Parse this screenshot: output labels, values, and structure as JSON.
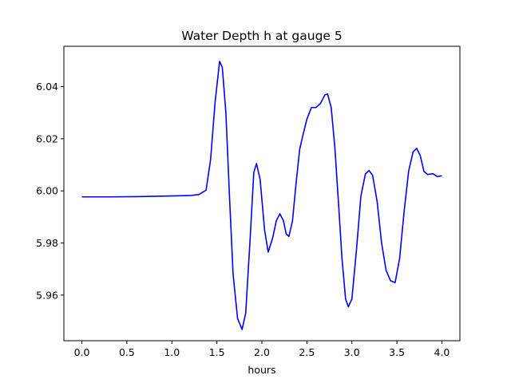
{
  "chart_data": {
    "type": "line",
    "title": "Water Depth h at gauge 5",
    "xlabel": "hours",
    "ylabel": "",
    "xlim": [
      -0.2,
      4.2
    ],
    "ylim": [
      5.9425,
      6.0555
    ],
    "xticks": [
      "0.0",
      "0.5",
      "1.0",
      "1.5",
      "2.0",
      "2.5",
      "3.0",
      "3.5",
      "4.0"
    ],
    "yticks": [
      "5.96",
      "5.98",
      "6.00",
      "6.02",
      "6.04"
    ],
    "grid": false,
    "series": [
      {
        "color": "#0000ff",
        "points": [
          [
            0.0,
            5.9977
          ],
          [
            0.3,
            5.9977
          ],
          [
            0.6,
            5.9978
          ],
          [
            0.9,
            5.998
          ],
          [
            1.2,
            5.9982
          ],
          [
            1.3,
            5.9986
          ],
          [
            1.38,
            6.0003
          ],
          [
            1.43,
            6.012
          ],
          [
            1.48,
            6.034
          ],
          [
            1.53,
            6.0497
          ],
          [
            1.56,
            6.0475
          ],
          [
            1.6,
            6.03
          ],
          [
            1.64,
            5.998
          ],
          [
            1.68,
            5.968
          ],
          [
            1.73,
            5.951
          ],
          [
            1.78,
            5.9468
          ],
          [
            1.82,
            5.953
          ],
          [
            1.87,
            5.982
          ],
          [
            1.91,
            6.007
          ],
          [
            1.94,
            6.0105
          ],
          [
            1.98,
            6.0045
          ],
          [
            2.03,
            5.985
          ],
          [
            2.07,
            5.9765
          ],
          [
            2.12,
            5.982
          ],
          [
            2.16,
            5.9885
          ],
          [
            2.2,
            5.9912
          ],
          [
            2.24,
            5.9885
          ],
          [
            2.27,
            5.9835
          ],
          [
            2.3,
            5.9825
          ],
          [
            2.34,
            5.9885
          ],
          [
            2.38,
            6.003
          ],
          [
            2.42,
            6.016
          ],
          [
            2.46,
            6.022
          ],
          [
            2.5,
            6.0275
          ],
          [
            2.55,
            6.032
          ],
          [
            2.6,
            6.032
          ],
          [
            2.65,
            6.0335
          ],
          [
            2.7,
            6.0368
          ],
          [
            2.73,
            6.0372
          ],
          [
            2.77,
            6.032
          ],
          [
            2.81,
            6.017
          ],
          [
            2.85,
            5.996
          ],
          [
            2.89,
            5.974
          ],
          [
            2.93,
            5.9585
          ],
          [
            2.96,
            5.9555
          ],
          [
            3.0,
            5.9585
          ],
          [
            3.05,
            5.977
          ],
          [
            3.1,
            5.998
          ],
          [
            3.15,
            6.0065
          ],
          [
            3.19,
            6.0078
          ],
          [
            3.23,
            6.006
          ],
          [
            3.28,
            5.996
          ],
          [
            3.33,
            5.98
          ],
          [
            3.38,
            5.9695
          ],
          [
            3.43,
            5.9655
          ],
          [
            3.48,
            5.9648
          ],
          [
            3.53,
            5.974
          ],
          [
            3.58,
            5.992
          ],
          [
            3.63,
            6.0075
          ],
          [
            3.68,
            6.015
          ],
          [
            3.72,
            6.0163
          ],
          [
            3.76,
            6.0135
          ],
          [
            3.8,
            6.0075
          ],
          [
            3.84,
            6.0063
          ],
          [
            3.9,
            6.0066
          ],
          [
            3.95,
            6.0055
          ],
          [
            4.0,
            6.0058
          ]
        ]
      }
    ]
  }
}
